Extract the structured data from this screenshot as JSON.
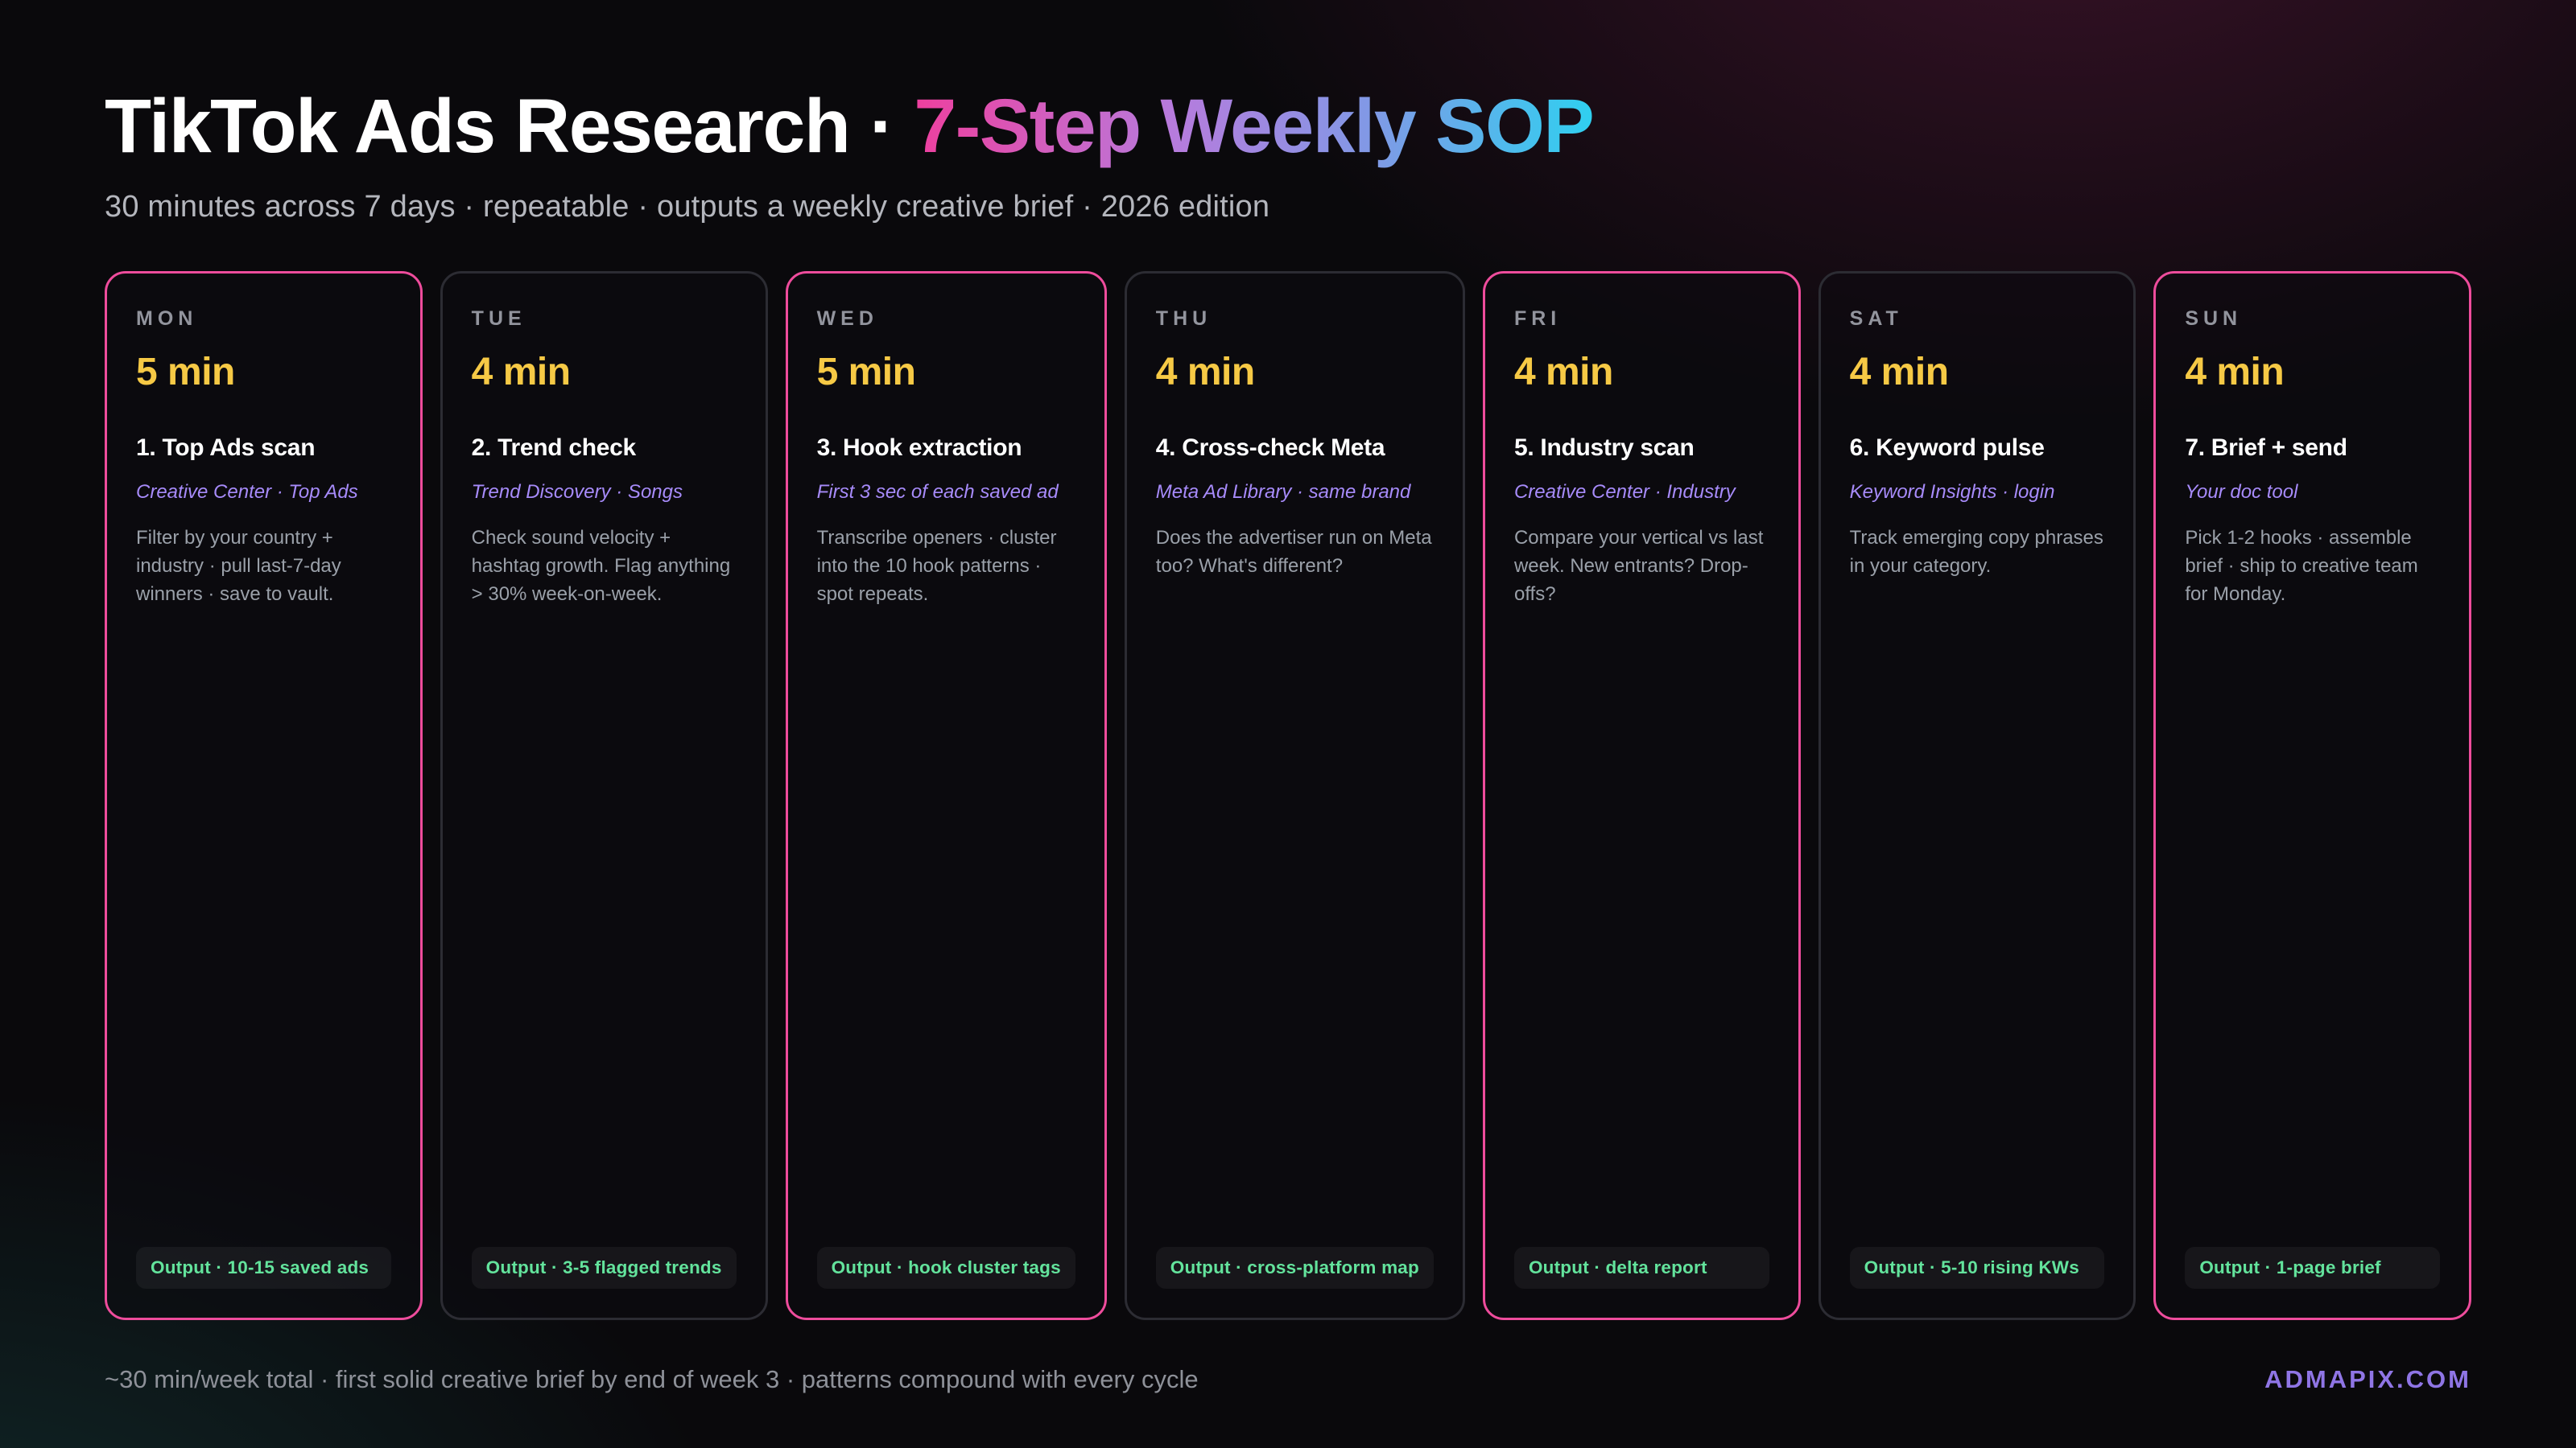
{
  "header": {
    "title_plain": "TikTok Ads Research · ",
    "title_gradient": "7-Step Weekly SOP",
    "subtitle": "30 minutes across 7 days · repeatable · outputs a weekly creative brief · 2026 edition"
  },
  "cards": [
    {
      "day": "MON",
      "minutes": "5 min",
      "step": "1. Top Ads scan",
      "tool": "Creative Center · Top Ads",
      "description": "Filter by your country + industry · pull last-7-day winners · save to vault.",
      "output": "Output · 10-15 saved ads",
      "accent": "#ee4c9c"
    },
    {
      "day": "TUE",
      "minutes": "4 min",
      "step": "2. Trend check",
      "tool": "Trend Discovery · Songs",
      "description": "Check sound velocity + hashtag growth. Flag anything > 30% week-on-week.",
      "output": "Output · 3-5 flagged trends",
      "accent": "#2c2c33"
    },
    {
      "day": "WED",
      "minutes": "5 min",
      "step": "3. Hook extraction",
      "tool": "First 3 sec of each saved ad",
      "description": "Transcribe openers · cluster into the 10 hook patterns · spot repeats.",
      "output": "Output · hook cluster tags",
      "accent": "#ee4c9c"
    },
    {
      "day": "THU",
      "minutes": "4 min",
      "step": "4. Cross-check Meta",
      "tool": "Meta Ad Library · same brand",
      "description": "Does the advertiser run on Meta too? What's different?",
      "output": "Output · cross-platform map",
      "accent": "#2c2c33"
    },
    {
      "day": "FRI",
      "minutes": "4 min",
      "step": "5. Industry scan",
      "tool": "Creative Center · Industry",
      "description": "Compare your vertical vs last week. New entrants? Drop-offs?",
      "output": "Output · delta report",
      "accent": "#ee4c9c"
    },
    {
      "day": "SAT",
      "minutes": "4 min",
      "step": "6. Keyword pulse",
      "tool": "Keyword Insights · login",
      "description": "Track emerging copy phrases in your category.",
      "output": "Output · 5-10 rising KWs",
      "accent": "#2c2c33"
    },
    {
      "day": "SUN",
      "minutes": "4 min",
      "step": "7. Brief + send",
      "tool": "Your doc tool",
      "description": "Pick 1-2 hooks · assemble brief · ship to creative team for Monday.",
      "output": "Output · 1-page brief",
      "accent": "#ee4c9c"
    }
  ],
  "footer": {
    "summary": "~30 min/week total · first solid creative brief by end of week 3 · patterns compound with every cycle",
    "brand": "ADMAPIX.COM"
  },
  "colors": {
    "accent_pink": "#ee4c9c",
    "accent_gray_border": "#2c2c33",
    "minutes_yellow": "#f6c945",
    "tool_purple": "#a78bfa",
    "output_green": "#63e39c",
    "brand_purple": "#8f75e5",
    "title_gradient_start": "#ee3f9e",
    "title_gradient_mid": "#7f9ae6",
    "title_gradient_end": "#2fd0f0"
  }
}
